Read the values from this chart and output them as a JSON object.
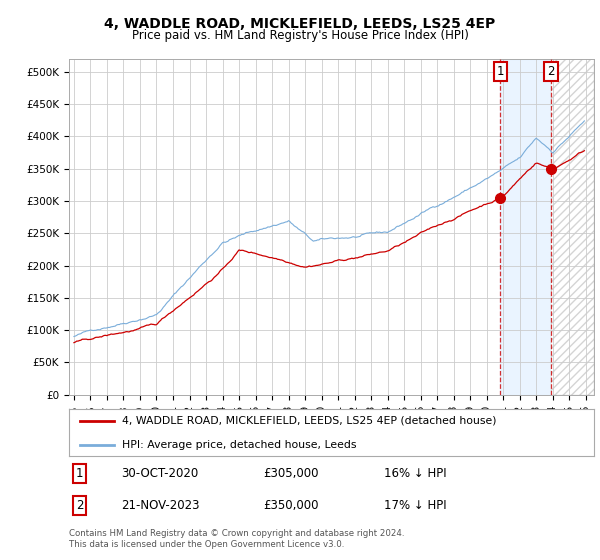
{
  "title_line1": "4, WADDLE ROAD, MICKLEFIELD, LEEDS, LS25 4EP",
  "title_line2": "Price paid vs. HM Land Registry's House Price Index (HPI)",
  "ylim": [
    0,
    520000
  ],
  "ytick_labels": [
    "£0",
    "£50K",
    "£100K",
    "£150K",
    "£200K",
    "£250K",
    "£300K",
    "£350K",
    "£400K",
    "£450K",
    "£500K"
  ],
  "ytick_values": [
    0,
    50000,
    100000,
    150000,
    200000,
    250000,
    300000,
    350000,
    400000,
    450000,
    500000
  ],
  "hpi_color": "#7aadda",
  "price_color": "#cc0000",
  "legend_label_red": "4, WADDLE ROAD, MICKLEFIELD, LEEDS, LS25 4EP (detached house)",
  "legend_label_blue": "HPI: Average price, detached house, Leeds",
  "annotation1_date": "30-OCT-2020",
  "annotation1_price": "£305,000",
  "annotation1_pct": "16% ↓ HPI",
  "annotation2_date": "21-NOV-2023",
  "annotation2_price": "£350,000",
  "annotation2_pct": "17% ↓ HPI",
  "footnote": "Contains HM Land Registry data © Crown copyright and database right 2024.\nThis data is licensed under the Open Government Licence v3.0.",
  "sale1_year": 2020.83,
  "sale1_value": 305000,
  "sale2_year": 2023.89,
  "sale2_value": 350000,
  "background_color": "#ffffff",
  "grid_color": "#cccccc",
  "shade_color": "#ddeeff"
}
